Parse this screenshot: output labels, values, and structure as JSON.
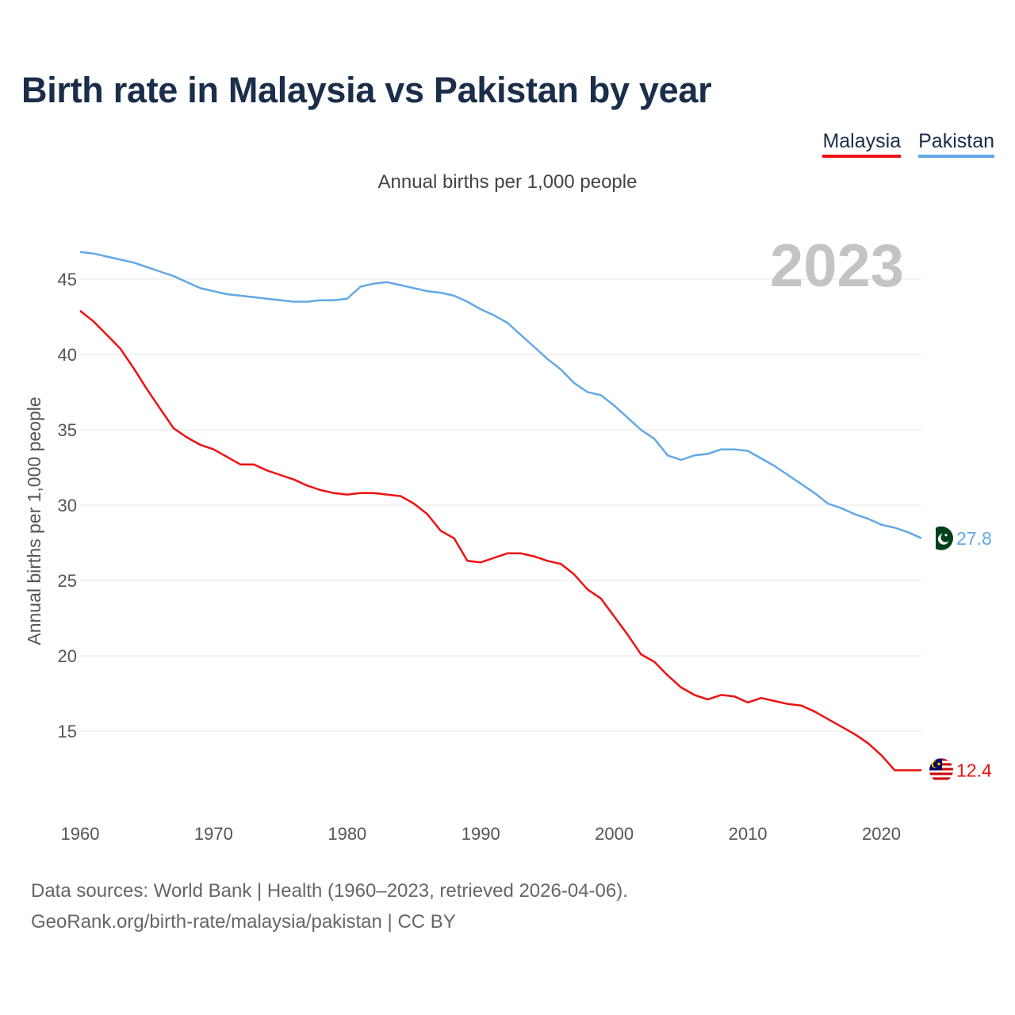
{
  "title": "Birth rate in Malaysia vs Pakistan by year",
  "legend": [
    {
      "label": "Malaysia",
      "color": "#ee1111"
    },
    {
      "label": "Pakistan",
      "color": "#63a8e6"
    }
  ],
  "source_line1": "Data sources: World Bank | Health (1960–2023, retrieved 2026-04-06).",
  "source_line2": "GeoRank.org/birth-rate/malaysia/pakistan | CC BY",
  "chart_data": {
    "type": "line",
    "title": "Birth rate in Malaysia vs Pakistan by year",
    "subtitle": "Annual births per 1,000 people",
    "xlabel": "",
    "ylabel": "Annual births per 1,000 people",
    "year_label": "2023",
    "xlim": [
      1960,
      2023
    ],
    "ylim": [
      10,
      48
    ],
    "x_ticks": [
      1960,
      1970,
      1980,
      1990,
      2000,
      2010,
      2020
    ],
    "y_ticks": [
      15,
      20,
      25,
      30,
      35,
      40,
      45
    ],
    "grid": true,
    "x": [
      1960,
      1961,
      1962,
      1963,
      1964,
      1965,
      1966,
      1967,
      1968,
      1969,
      1970,
      1971,
      1972,
      1973,
      1974,
      1975,
      1976,
      1977,
      1978,
      1979,
      1980,
      1981,
      1982,
      1983,
      1984,
      1985,
      1986,
      1987,
      1988,
      1989,
      1990,
      1991,
      1992,
      1993,
      1994,
      1995,
      1996,
      1997,
      1998,
      1999,
      2000,
      2001,
      2002,
      2003,
      2004,
      2005,
      2006,
      2007,
      2008,
      2009,
      2010,
      2011,
      2012,
      2013,
      2014,
      2015,
      2016,
      2017,
      2018,
      2019,
      2020,
      2021,
      2022,
      2023
    ],
    "series": [
      {
        "name": "Malaysia",
        "color": "#ee1111",
        "end_label": "12.4",
        "values": [
          42.9,
          42.2,
          41.3,
          40.4,
          39.1,
          37.7,
          36.4,
          35.1,
          34.5,
          34.0,
          33.7,
          33.2,
          32.7,
          32.7,
          32.3,
          32.0,
          31.7,
          31.3,
          31.0,
          30.8,
          30.7,
          30.8,
          30.8,
          30.7,
          30.6,
          30.1,
          29.4,
          28.3,
          27.8,
          26.3,
          26.2,
          26.5,
          26.8,
          26.8,
          26.6,
          26.3,
          26.1,
          25.4,
          24.4,
          23.8,
          22.6,
          21.4,
          20.1,
          19.6,
          18.7,
          17.9,
          17.4,
          17.1,
          17.4,
          17.3,
          16.9,
          17.2,
          17.0,
          16.8,
          16.7,
          16.3,
          15.8,
          15.3,
          14.8,
          14.2,
          13.4,
          12.4,
          12.4,
          12.4
        ]
      },
      {
        "name": "Pakistan",
        "color": "#63a8e6",
        "end_label": "27.8",
        "values": [
          46.8,
          46.7,
          46.5,
          46.3,
          46.1,
          45.8,
          45.5,
          45.2,
          44.8,
          44.4,
          44.2,
          44.0,
          43.9,
          43.8,
          43.7,
          43.6,
          43.5,
          43.5,
          43.6,
          43.6,
          43.7,
          44.5,
          44.7,
          44.8,
          44.6,
          44.4,
          44.2,
          44.1,
          43.9,
          43.5,
          43.0,
          42.6,
          42.1,
          41.3,
          40.5,
          39.7,
          39.0,
          38.1,
          37.5,
          37.3,
          36.6,
          35.8,
          35.0,
          34.4,
          33.3,
          33.0,
          33.3,
          33.4,
          33.7,
          33.7,
          33.6,
          33.1,
          32.6,
          32.0,
          31.4,
          30.8,
          30.1,
          29.8,
          29.4,
          29.1,
          28.7,
          28.5,
          28.2,
          27.8
        ]
      }
    ]
  }
}
